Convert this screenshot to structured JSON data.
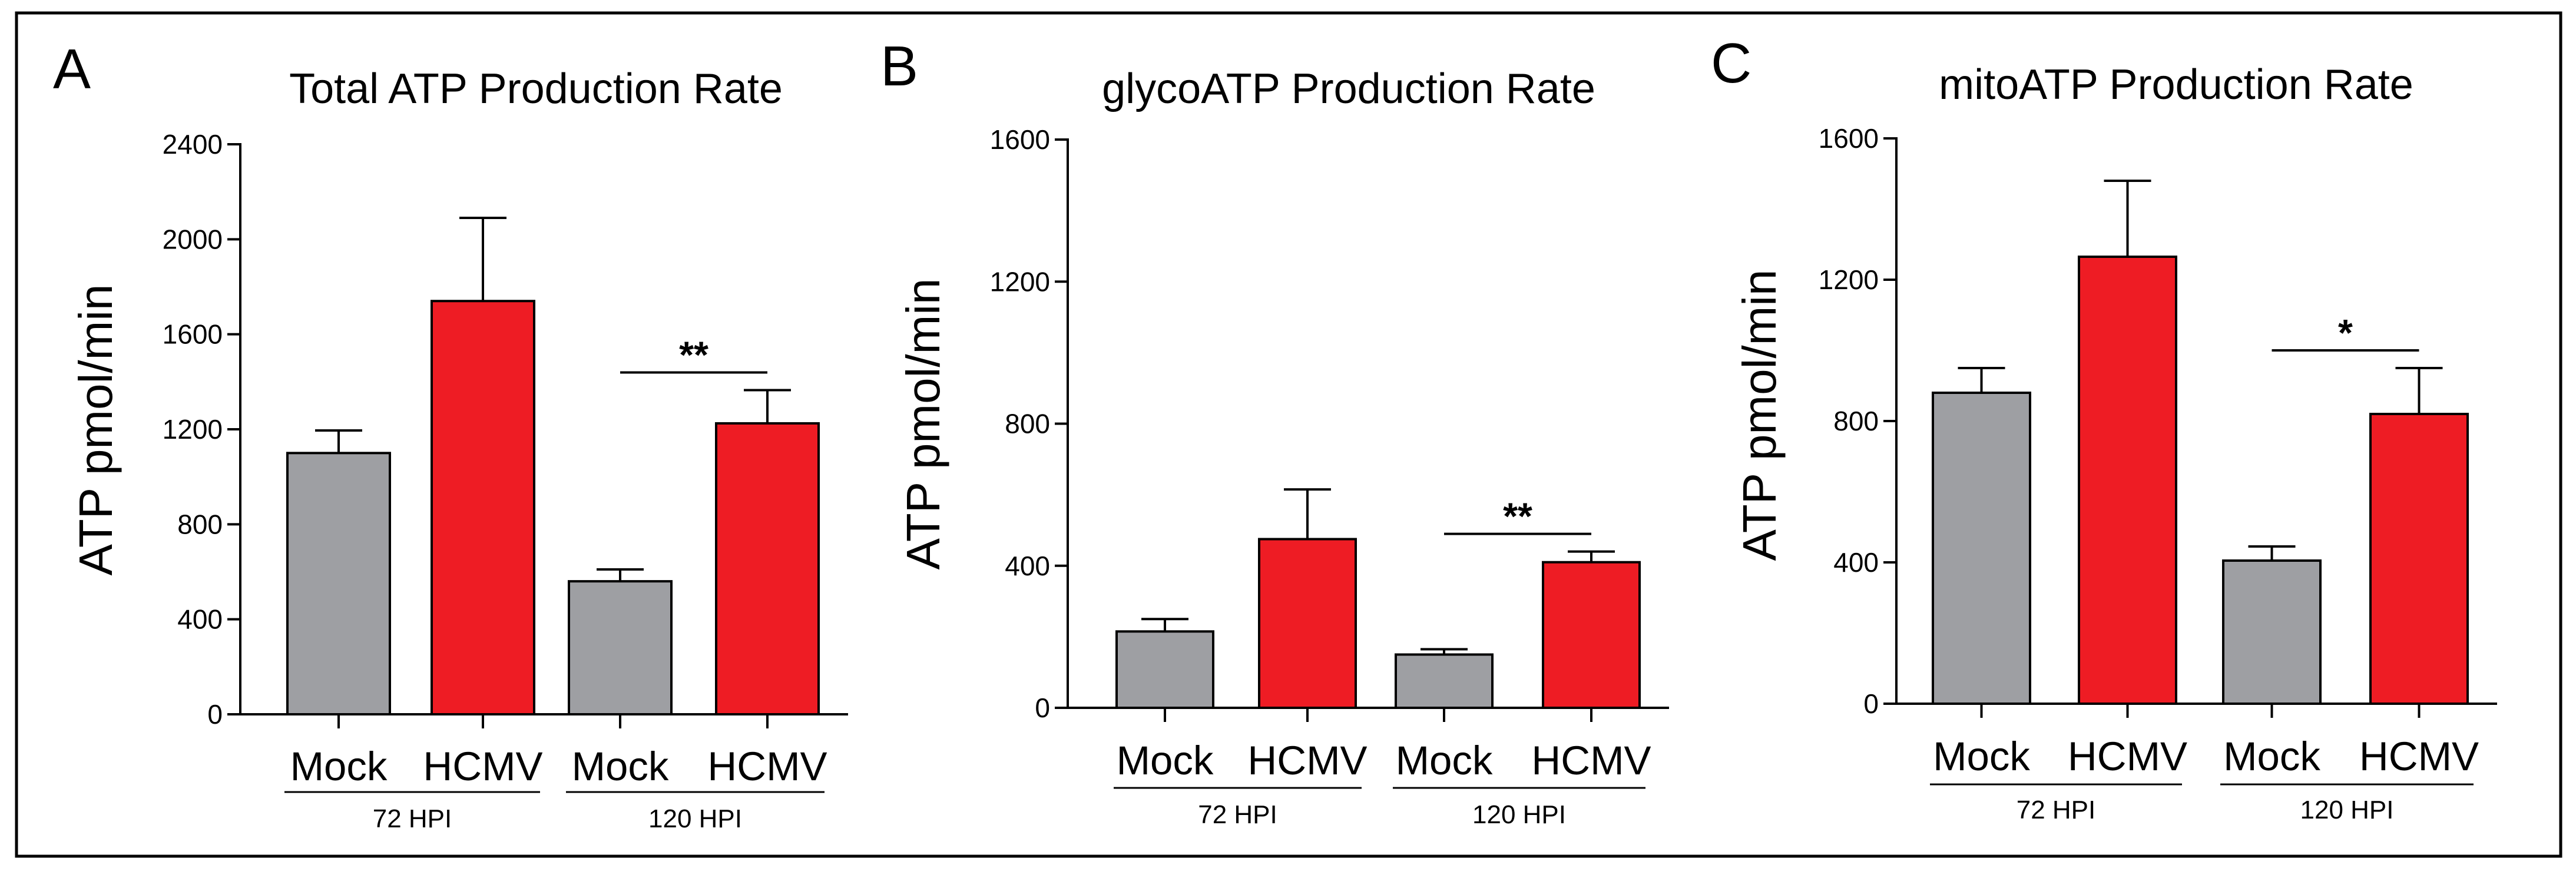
{
  "chart_data": [
    {
      "type": "bar",
      "panel": "A",
      "title": "Total ATP Production Rate",
      "ylabel": "ATP pmol/min",
      "xlabel": "",
      "ylim": [
        0,
        2400
      ],
      "yticks": [
        "0",
        "400",
        "800",
        "1200",
        "1600",
        "2000",
        "2400"
      ],
      "categories": [
        "Mock",
        "HCMV",
        "Mock",
        "HCMV"
      ],
      "groups": [
        {
          "label": "72 HPI",
          "members": [
            0,
            1
          ]
        },
        {
          "label": "120 HPI",
          "members": [
            2,
            3
          ]
        }
      ],
      "values": [
        1100,
        1740,
        560,
        1225
      ],
      "errors": [
        95,
        350,
        50,
        140
      ],
      "colors": [
        "#9e9fa3",
        "#ee1c24",
        "#9e9fa3",
        "#ee1c24"
      ],
      "significance": [
        {
          "between": [
            2,
            3
          ],
          "label": "**"
        }
      ]
    },
    {
      "type": "bar",
      "panel": "B",
      "title": "glycoATP Production Rate",
      "ylabel": "ATP pmol/min",
      "xlabel": "",
      "ylim": [
        0,
        1600
      ],
      "yticks": [
        "0",
        "400",
        "800",
        "1200",
        "1600"
      ],
      "categories": [
        "Mock",
        "HCMV",
        "Mock",
        "HCMV"
      ],
      "groups": [
        {
          "label": "72 HPI",
          "members": [
            0,
            1
          ]
        },
        {
          "label": "120 HPI",
          "members": [
            2,
            3
          ]
        }
      ],
      "values": [
        215,
        475,
        150,
        410
      ],
      "errors": [
        35,
        140,
        15,
        30
      ],
      "colors": [
        "#9e9fa3",
        "#ee1c24",
        "#9e9fa3",
        "#ee1c24"
      ],
      "significance": [
        {
          "between": [
            2,
            3
          ],
          "label": "**"
        }
      ]
    },
    {
      "type": "bar",
      "panel": "C",
      "title": "mitoATP Production Rate",
      "ylabel": "ATP pmol/min",
      "xlabel": "",
      "ylim": [
        0,
        1600
      ],
      "yticks": [
        "0",
        "400",
        "800",
        "1200",
        "1600"
      ],
      "categories": [
        "Mock",
        "HCMV",
        "Mock",
        "HCMV"
      ],
      "groups": [
        {
          "label": "72 HPI",
          "members": [
            0,
            1
          ]
        },
        {
          "label": "120 HPI",
          "members": [
            2,
            3
          ]
        }
      ],
      "values": [
        880,
        1265,
        405,
        820
      ],
      "errors": [
        70,
        215,
        40,
        130
      ],
      "colors": [
        "#9e9fa3",
        "#ee1c24",
        "#9e9fa3",
        "#ee1c24"
      ],
      "significance": [
        {
          "between": [
            2,
            3
          ],
          "label": "*"
        }
      ]
    }
  ]
}
